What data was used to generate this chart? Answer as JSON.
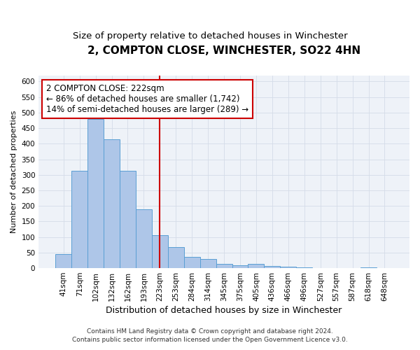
{
  "title1": "2, COMPTON CLOSE, WINCHESTER, SO22 4HN",
  "title2": "Size of property relative to detached houses in Winchester",
  "xlabel": "Distribution of detached houses by size in Winchester",
  "ylabel": "Number of detached properties",
  "categories": [
    "41sqm",
    "71sqm",
    "102sqm",
    "132sqm",
    "162sqm",
    "193sqm",
    "223sqm",
    "253sqm",
    "284sqm",
    "314sqm",
    "345sqm",
    "375sqm",
    "405sqm",
    "436sqm",
    "466sqm",
    "496sqm",
    "527sqm",
    "557sqm",
    "587sqm",
    "618sqm",
    "648sqm"
  ],
  "values": [
    45,
    312,
    480,
    415,
    312,
    190,
    105,
    68,
    37,
    30,
    13,
    10,
    13,
    8,
    5,
    2,
    1,
    0,
    0,
    2,
    1
  ],
  "bar_color": "#aec6e8",
  "bar_edgecolor": "#5a9fd4",
  "bar_linewidth": 0.7,
  "vline_x_idx": 6,
  "vline_color": "#cc0000",
  "vline_linewidth": 1.5,
  "annotation_line1": "2 COMPTON CLOSE: 222sqm",
  "annotation_line2": "← 86% of detached houses are smaller (1,742)",
  "annotation_line3": "14% of semi-detached houses are larger (289) →",
  "annotation_box_color": "#ffffff",
  "annotation_box_edgecolor": "#cc0000",
  "annotation_fontsize": 8.5,
  "ylim": [
    0,
    620
  ],
  "yticks": [
    0,
    50,
    100,
    150,
    200,
    250,
    300,
    350,
    400,
    450,
    500,
    550,
    600
  ],
  "grid_color": "#d4dce8",
  "background_color": "#eef2f8",
  "footer1": "Contains HM Land Registry data © Crown copyright and database right 2024.",
  "footer2": "Contains public sector information licensed under the Open Government Licence v3.0.",
  "title1_fontsize": 11,
  "title2_fontsize": 9.5,
  "xlabel_fontsize": 9,
  "ylabel_fontsize": 8,
  "tick_fontsize": 7.5,
  "footer_fontsize": 6.5
}
